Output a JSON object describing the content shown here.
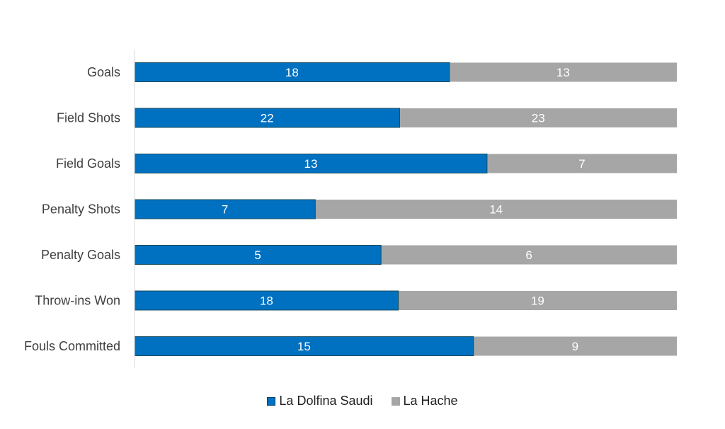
{
  "chart_data": {
    "type": "bar",
    "orientation": "horizontal",
    "stacked": "100%",
    "title": "",
    "xlabel": "",
    "ylabel": "",
    "categories": [
      "Goals",
      "Field Shots",
      "Field Goals",
      "Penalty Shots",
      "Penalty Goals",
      "Throw-ins Won",
      "Fouls Committed"
    ],
    "series": [
      {
        "name": "La Dolfina Saudi",
        "values": [
          18,
          22,
          13,
          7,
          5,
          18,
          15
        ],
        "color": "#0070C0"
      },
      {
        "name": "La Hache",
        "values": [
          13,
          23,
          7,
          14,
          6,
          19,
          9
        ],
        "color": "#A6A6A6"
      }
    ],
    "data_labels": true,
    "grid": false,
    "legend_position": "bottom"
  }
}
